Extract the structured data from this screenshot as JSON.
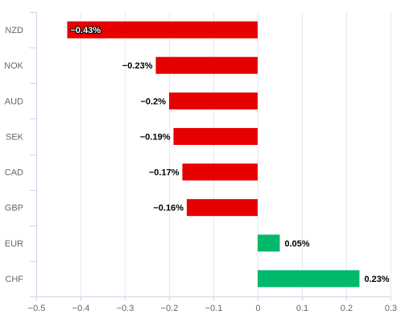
{
  "chart_data": {
    "type": "bar",
    "orientation": "horizontal",
    "categories": [
      "NZD",
      "NOK",
      "AUD",
      "SEK",
      "CAD",
      "GBP",
      "EUR",
      "CHF"
    ],
    "values": [
      -0.43,
      -0.23,
      -0.2,
      -0.19,
      -0.17,
      -0.16,
      0.05,
      0.23
    ],
    "data_labels": [
      "−0.43%",
      "−0.23%",
      "−0.2%",
      "−0.19%",
      "−0.17%",
      "−0.16%",
      "0.05%",
      "0.23%"
    ],
    "x_ticks": [
      -0.5,
      -0.4,
      -0.3,
      -0.2,
      -0.1,
      0,
      0.1,
      0.2,
      0.3
    ],
    "x_tick_labels": [
      "−0.5",
      "−0.4",
      "−0.3",
      "−0.2",
      "−0.1",
      "0",
      "0.1",
      "0.2",
      "0.3"
    ],
    "xlim": [
      -0.5,
      0.3
    ],
    "grid": true,
    "legend": "none",
    "colors": {
      "negative": "#e60000",
      "positive": "#00b96b",
      "grid": "#e6e9f0",
      "axis": "#ccd6eb",
      "label": "#666666",
      "data_label": "#000000",
      "data_label_inside": "#ffffff"
    }
  }
}
